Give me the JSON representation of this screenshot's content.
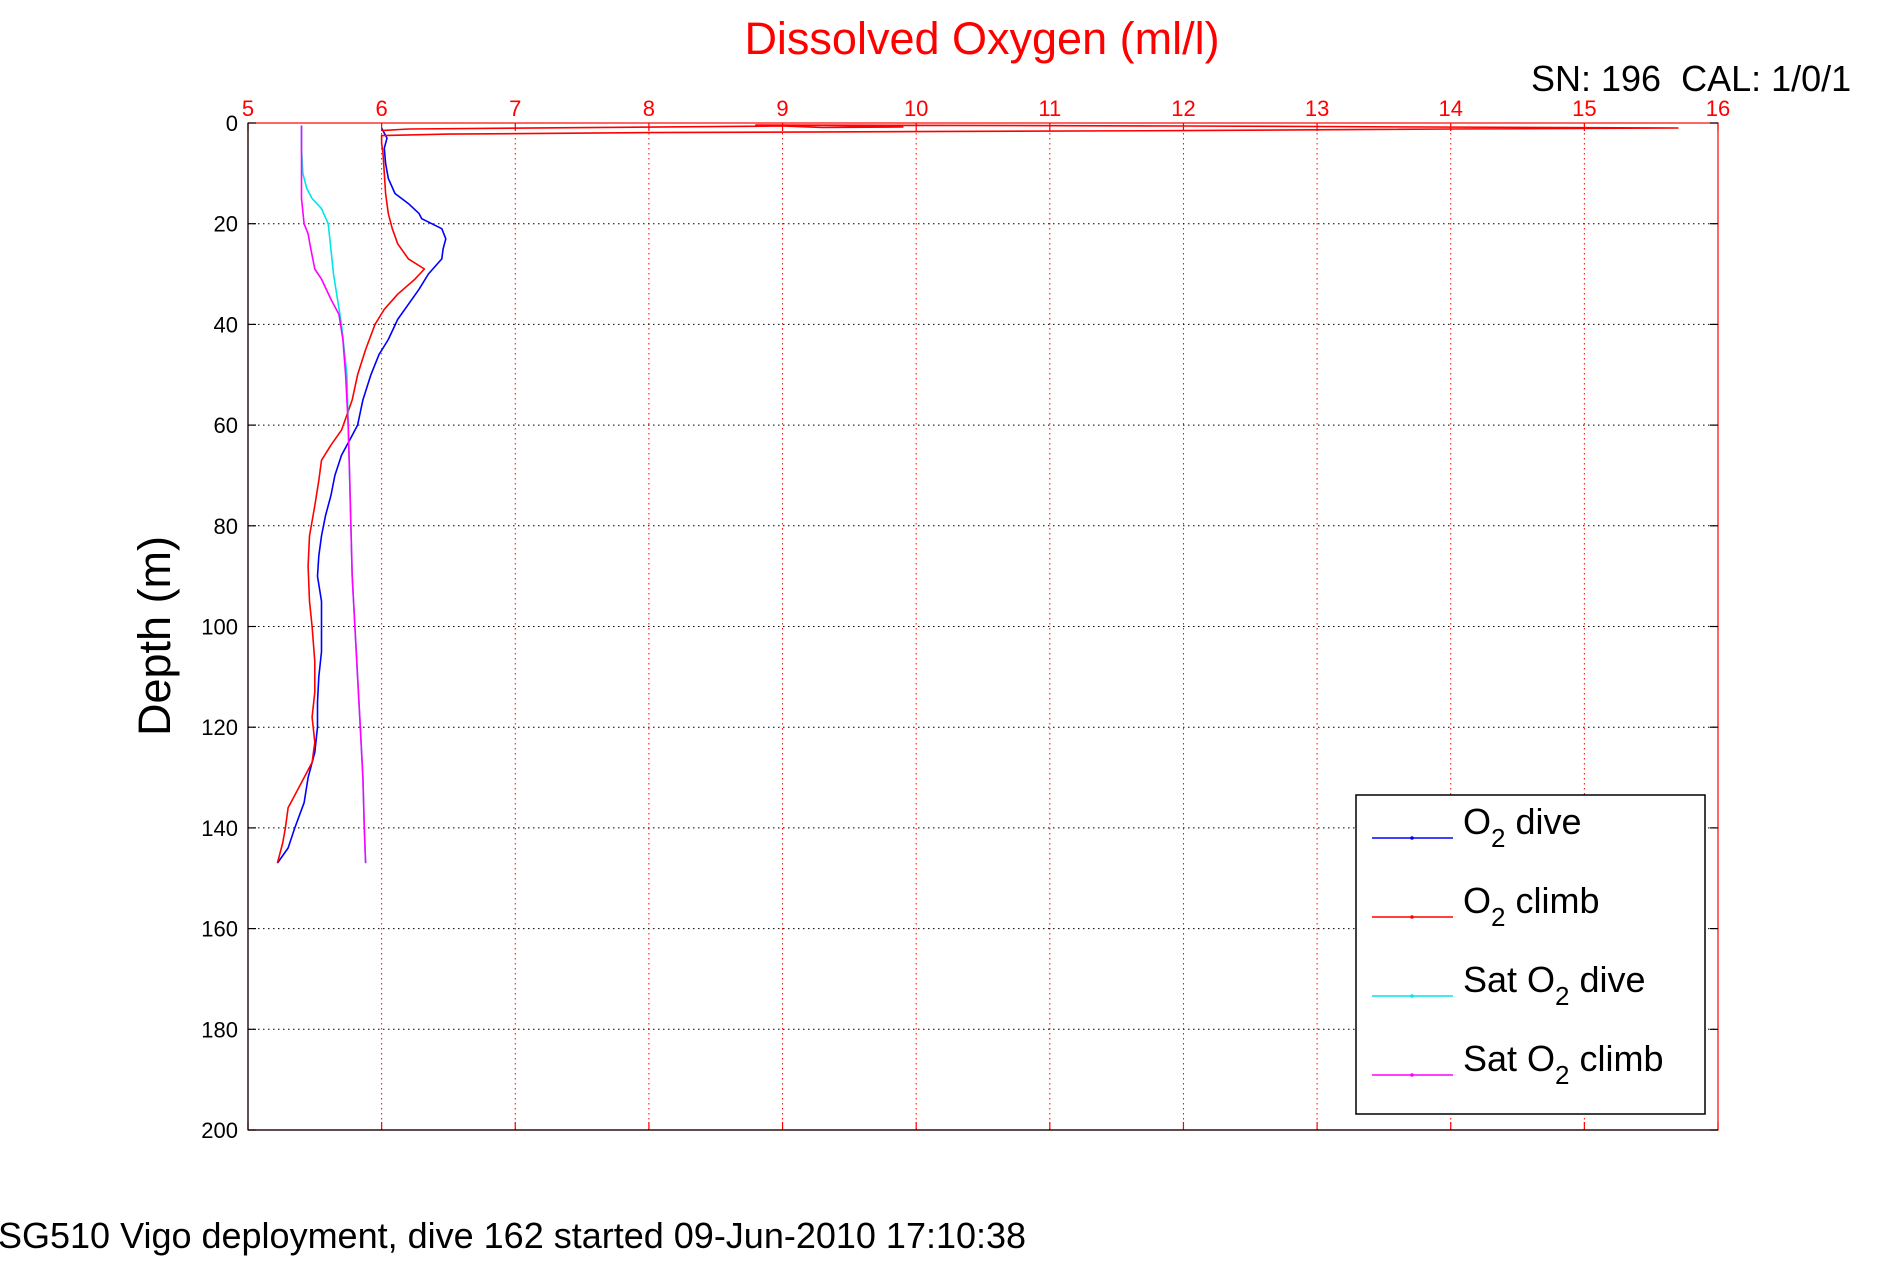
{
  "chart_data": {
    "type": "line",
    "title": "Dissolved Oxygen (ml/l)",
    "ylabel": "Depth (m)",
    "xlabel": "",
    "top_right_label": "SN: 196  CAL: 1/0/1",
    "footer": "SG510 Vigo deployment, dive 162 started 09-Jun-2010 17:10:38",
    "xlim": [
      5,
      16
    ],
    "ylim": [
      0,
      200
    ],
    "y_reversed": true,
    "x_axis_position": "top",
    "x_ticks": [
      5,
      6,
      7,
      8,
      9,
      10,
      11,
      12,
      13,
      14,
      15,
      16
    ],
    "y_ticks": [
      0,
      20,
      40,
      60,
      80,
      100,
      120,
      140,
      160,
      180,
      200
    ],
    "grid": true,
    "legend_position": "bottom-right",
    "legend": [
      {
        "base": "O",
        "sub": "2",
        "suffix": " dive"
      },
      {
        "base": "O",
        "sub": "2",
        "suffix": " climb"
      },
      {
        "base": "Sat O",
        "sub": "2",
        "suffix": " dive"
      },
      {
        "base": "Sat O",
        "sub": "2",
        "suffix": " climb"
      }
    ],
    "series": [
      {
        "key": "o2_dive",
        "color": "#0000ff",
        "points": [
          [
            6.0,
            1
          ],
          [
            6.02,
            2
          ],
          [
            6.04,
            3
          ],
          [
            6.02,
            5
          ],
          [
            6.03,
            8
          ],
          [
            6.05,
            11
          ],
          [
            6.1,
            14
          ],
          [
            6.2,
            16
          ],
          [
            6.28,
            18
          ],
          [
            6.3,
            19
          ],
          [
            6.45,
            21
          ],
          [
            6.48,
            23
          ],
          [
            6.46,
            25
          ],
          [
            6.45,
            27
          ],
          [
            6.35,
            30
          ],
          [
            6.28,
            33
          ],
          [
            6.2,
            36
          ],
          [
            6.12,
            39
          ],
          [
            6.05,
            43
          ],
          [
            5.98,
            46
          ],
          [
            5.92,
            50
          ],
          [
            5.86,
            55
          ],
          [
            5.82,
            60
          ],
          [
            5.76,
            63
          ],
          [
            5.7,
            66
          ],
          [
            5.65,
            70
          ],
          [
            5.62,
            74
          ],
          [
            5.58,
            78
          ],
          [
            5.55,
            82
          ],
          [
            5.53,
            86
          ],
          [
            5.52,
            90
          ],
          [
            5.55,
            95
          ],
          [
            5.55,
            100
          ],
          [
            5.55,
            105
          ],
          [
            5.53,
            110
          ],
          [
            5.52,
            115
          ],
          [
            5.52,
            120
          ],
          [
            5.5,
            125
          ],
          [
            5.45,
            130
          ],
          [
            5.42,
            135
          ],
          [
            5.35,
            140
          ],
          [
            5.3,
            144
          ],
          [
            5.22,
            147
          ]
        ]
      },
      {
        "key": "o2_climb",
        "color": "#ff0000",
        "points": [
          [
            5.22,
            147
          ],
          [
            5.26,
            143
          ],
          [
            5.28,
            140
          ],
          [
            5.3,
            136
          ],
          [
            5.36,
            133
          ],
          [
            5.42,
            130
          ],
          [
            5.48,
            127
          ],
          [
            5.5,
            123
          ],
          [
            5.48,
            118
          ],
          [
            5.5,
            113
          ],
          [
            5.5,
            107
          ],
          [
            5.48,
            100
          ],
          [
            5.46,
            95
          ],
          [
            5.45,
            88
          ],
          [
            5.46,
            82
          ],
          [
            5.5,
            76
          ],
          [
            5.53,
            71
          ],
          [
            5.55,
            67
          ],
          [
            5.62,
            64
          ],
          [
            5.7,
            61
          ],
          [
            5.74,
            58
          ],
          [
            5.78,
            55
          ],
          [
            5.82,
            50
          ],
          [
            5.88,
            45
          ],
          [
            5.95,
            40
          ],
          [
            6.02,
            37
          ],
          [
            6.12,
            34
          ],
          [
            6.25,
            31
          ],
          [
            6.32,
            29
          ],
          [
            6.2,
            27
          ],
          [
            6.12,
            24
          ],
          [
            6.08,
            21
          ],
          [
            6.05,
            18
          ],
          [
            6.03,
            14
          ],
          [
            6.02,
            10
          ],
          [
            6.01,
            6
          ],
          [
            6.0,
            4
          ],
          [
            6.0,
            2.5
          ],
          [
            6.5,
            2.2
          ],
          [
            8.0,
            1.9
          ],
          [
            10.0,
            1.7
          ],
          [
            12.0,
            1.5
          ],
          [
            14.0,
            1.2
          ],
          [
            15.7,
            1.0
          ],
          [
            12.0,
            0.6
          ],
          [
            8.8,
            0.4
          ],
          [
            9.3,
            0.5
          ],
          [
            9.9,
            0.8
          ],
          [
            9.3,
            0.9
          ],
          [
            9.0,
            0.6
          ],
          [
            6.2,
            1.2
          ],
          [
            6.0,
            1.5
          ]
        ]
      },
      {
        "key": "sat_o2_dive",
        "color": "#00e5e5",
        "points": [
          [
            5.4,
            0.5
          ],
          [
            5.4,
            5
          ],
          [
            5.41,
            10
          ],
          [
            5.44,
            13
          ],
          [
            5.48,
            15
          ],
          [
            5.55,
            17
          ],
          [
            5.6,
            20
          ],
          [
            5.62,
            25
          ],
          [
            5.64,
            30
          ],
          [
            5.67,
            35
          ],
          [
            5.7,
            40
          ],
          [
            5.72,
            45
          ],
          [
            5.74,
            50
          ],
          [
            5.75,
            60
          ],
          [
            5.76,
            70
          ],
          [
            5.77,
            80
          ],
          [
            5.78,
            90
          ],
          [
            5.8,
            100
          ],
          [
            5.82,
            110
          ],
          [
            5.84,
            120
          ],
          [
            5.86,
            130
          ],
          [
            5.87,
            140
          ],
          [
            5.88,
            147
          ]
        ]
      },
      {
        "key": "sat_o2_climb",
        "color": "#ff00ff",
        "points": [
          [
            5.88,
            147
          ],
          [
            5.87,
            140
          ],
          [
            5.86,
            130
          ],
          [
            5.84,
            120
          ],
          [
            5.82,
            110
          ],
          [
            5.8,
            100
          ],
          [
            5.78,
            90
          ],
          [
            5.77,
            80
          ],
          [
            5.76,
            70
          ],
          [
            5.75,
            60
          ],
          [
            5.73,
            50
          ],
          [
            5.71,
            43
          ],
          [
            5.68,
            38
          ],
          [
            5.62,
            35
          ],
          [
            5.55,
            31
          ],
          [
            5.5,
            29
          ],
          [
            5.47,
            25
          ],
          [
            5.45,
            22
          ],
          [
            5.42,
            20
          ],
          [
            5.4,
            15
          ],
          [
            5.4,
            10
          ],
          [
            5.4,
            5
          ],
          [
            5.4,
            0.5
          ]
        ]
      }
    ]
  }
}
